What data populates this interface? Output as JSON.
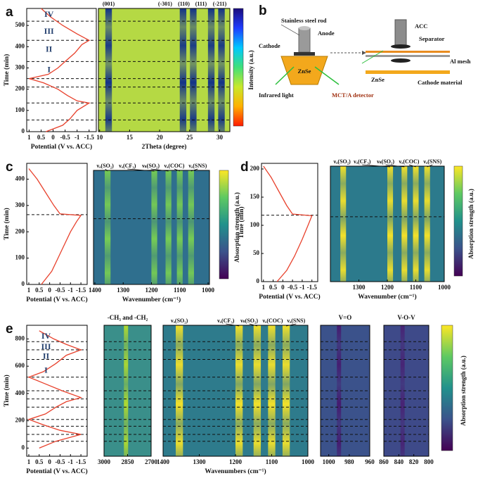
{
  "chart_data": [
    {
      "type": "line",
      "label": "a",
      "ylabel": "Time (min)",
      "xlabel": "Potential (V vs. ACC)",
      "color": "#e8412c",
      "x": [
        0.3,
        -0.4,
        -0.7,
        -1.0,
        -1.5,
        -1.0,
        -0.6,
        -0.2,
        0.4,
        1.0,
        0.2,
        -0.2,
        -0.5,
        -0.9,
        -1.2,
        -1.5,
        -1.0,
        -0.4,
        0.1,
        0.5
      ],
      "values": [
        0,
        30,
        60,
        100,
        135,
        145,
        170,
        200,
        230,
        250,
        270,
        300,
        330,
        370,
        410,
        430,
        460,
        500,
        540,
        580
      ],
      "xlim": [
        1.1,
        -1.8
      ],
      "xticks": [
        1,
        0.5,
        0,
        -0.5,
        -1,
        -1.5
      ],
      "ylim": [
        0,
        580
      ],
      "yticks": [
        0,
        100,
        200,
        300,
        400,
        500
      ],
      "hlines": [
        55,
        135,
        210,
        250,
        330,
        430,
        520
      ],
      "annotations": [
        {
          "text": "IV",
          "y": 550
        },
        {
          "text": "III",
          "y": 470
        },
        {
          "text": "II",
          "y": 385
        },
        {
          "text": "I",
          "y": 290
        }
      ]
    },
    {
      "type": "heatmap",
      "xlabel": "2Theta (degree)",
      "xlim": [
        9.8,
        31.7
      ],
      "xticks": [
        10,
        15,
        20,
        25,
        30
      ],
      "ylim": [
        0,
        580
      ],
      "hlines": [
        55,
        135,
        210,
        250,
        330,
        430,
        520
      ],
      "colorbar_label": "Intensity (a.u.)",
      "colormap": [
        "#1a0b7a",
        "#1e3cff",
        "#00c8ff",
        "#3fe07a",
        "#c8e82a",
        "#ffb000",
        "#ff1a00"
      ],
      "background": "#b5d944",
      "peak_color": "#0b2a8c",
      "peaks": [
        {
          "label": "(001)",
          "x": 11.5
        },
        {
          "label": "(-301)",
          "x": 23.9
        },
        {
          "label": "(110)",
          "x": 25.6
        },
        {
          "label": "(111)",
          "x": 28.6
        },
        {
          "label": "(-211)",
          "x": 30.3
        }
      ]
    },
    {
      "type": "line",
      "label": "c",
      "ylabel": "Time (min)",
      "xlabel": "Potential (V vs. ACC)",
      "color": "#e8412c",
      "x": [
        0.4,
        -0.1,
        -0.4,
        -0.7,
        -1.0,
        -1.3,
        -1.5,
        -0.5,
        -0.2,
        0.2,
        0.6,
        1.0
      ],
      "values": [
        0,
        50,
        100,
        150,
        200,
        240,
        262,
        268,
        300,
        350,
        400,
        440
      ],
      "xlim": [
        1.1,
        -1.8
      ],
      "xticks": [
        1,
        0.5,
        0,
        -0.5,
        -1,
        -1.5
      ],
      "ylim": [
        0,
        460
      ],
      "yticks": [
        0,
        100,
        200,
        300,
        400
      ],
      "hlines": [
        265
      ]
    },
    {
      "type": "heatmap",
      "xlabel": "Wavenumber (cm⁻¹)",
      "xlim": [
        1405,
        995
      ],
      "xticks": [
        1400,
        1300,
        1200,
        1100,
        1000
      ],
      "ylim": [
        0,
        460
      ],
      "hlines": [
        265
      ],
      "colorbar_label": "Absorption strength (a.u.)",
      "colormap": [
        "#fde725",
        "#5ec962",
        "#21918c",
        "#3b528b",
        "#440154"
      ],
      "background": "#2f6f8e",
      "peak_color": "#7ad151",
      "peak_arrows": true,
      "peaks": [
        {
          "label": "νₐ(SO₂)",
          "x": 1355
        },
        {
          "label": "νₐ(CF₃)",
          "x": 1190
        },
        {
          "label": "νₛ(SO₂)",
          "x": 1140
        },
        {
          "label": "νₐ(COC)",
          "x": 1100
        },
        {
          "label": "νₐ(SNS)",
          "x": 1060
        }
      ]
    },
    {
      "type": "line",
      "label": "d",
      "ylabel": "Time (min)",
      "xlabel": "Potential (V vs. ACC)",
      "color": "#e8412c",
      "x": [
        0.3,
        -0.2,
        -0.6,
        -1.0,
        -1.3,
        -1.5,
        -0.5,
        -0.2,
        0.2,
        0.6,
        1.0
      ],
      "values": [
        0,
        20,
        45,
        75,
        100,
        117,
        120,
        135,
        160,
        185,
        205
      ],
      "xlim": [
        1.1,
        -1.8
      ],
      "xticks": [
        1,
        0.5,
        0,
        -0.5,
        -1,
        -1.5
      ],
      "ylim": [
        0,
        210
      ],
      "yticks": [
        0,
        50,
        100,
        150,
        200
      ],
      "hlines": [
        118
      ]
    },
    {
      "type": "heatmap",
      "xlabel": "Wavenumber (cm⁻¹)",
      "xlim": [
        1400,
        1000
      ],
      "xticks": [
        1300,
        1200,
        1100,
        1000
      ],
      "ylim": [
        0,
        210
      ],
      "hlines": [
        118
      ],
      "colorbar_label": "Absorption strength (a.u.)",
      "colormap": [
        "#fde725",
        "#5ec962",
        "#21918c",
        "#3b528b",
        "#440154"
      ],
      "background": "#2c7a8c",
      "peak_color": "#fde725",
      "peak_arrows": true,
      "peaks": [
        {
          "label": "νₐ(SO₂)",
          "x": 1355
        },
        {
          "label": "νₐ(CF₃)",
          "x": 1190
        },
        {
          "label": "νₛ(SO₂)",
          "x": 1140
        },
        {
          "label": "νₐ(COC)",
          "x": 1100
        },
        {
          "label": "νₐ(SNS)",
          "x": 1060
        }
      ]
    },
    {
      "type": "line",
      "label": "e",
      "ylabel": "Time (min)",
      "xlabel": "Potential (V vs. ACC)",
      "color": "#e8412c",
      "x": [
        0.5,
        -0.3,
        -1.5,
        -0.5,
        0.3,
        1.0,
        0.2,
        -0.3,
        -0.8,
        -1.5,
        -0.6,
        0.2,
        1.0,
        0.3,
        -0.3,
        -0.8,
        -1.5,
        -0.8,
        -0.2,
        0.5
      ],
      "values": [
        0,
        50,
        100,
        130,
        170,
        210,
        250,
        300,
        340,
        370,
        420,
        470,
        520,
        560,
        620,
        680,
        720,
        760,
        800,
        860
      ],
      "xlim": [
        1.1,
        -1.8
      ],
      "xticks": [
        1,
        0.5,
        0,
        -0.5,
        -1,
        -1.5
      ],
      "ylim": [
        -60,
        900
      ],
      "yticks": [
        0,
        200,
        400,
        600,
        800
      ],
      "hlines": [
        50,
        100,
        160,
        210,
        300,
        360,
        420,
        520,
        650,
        720,
        780
      ],
      "annotations": [
        {
          "text": "IV",
          "y": 815
        },
        {
          "text": "III",
          "y": 740
        },
        {
          "text": "II",
          "y": 670
        },
        {
          "text": "I",
          "y": 565
        }
      ]
    },
    {
      "type": "heatmap",
      "title": "-CH₃  and  -CH₂",
      "xlim": [
        3000,
        2700
      ],
      "xticks": [
        3000,
        2850,
        2700
      ],
      "ylim": [
        -60,
        900
      ],
      "hlines": [
        50,
        100,
        160,
        210,
        300,
        360,
        420,
        520,
        650,
        720,
        780
      ],
      "background": "#3a8f8a",
      "peak_color": "#b5de2b",
      "peaks": [
        {
          "x": 2860
        }
      ]
    },
    {
      "type": "heatmap",
      "xlabel": "Wavenumbers (cm⁻¹)",
      "xlim": [
        1400,
        1000
      ],
      "xticks": [
        1400,
        1300,
        1200,
        1100,
        1000
      ],
      "ylim": [
        -60,
        900
      ],
      "hlines": [
        50,
        100,
        160,
        210,
        300,
        360,
        420,
        520,
        650,
        720,
        780
      ],
      "background": "#2e7b8c",
      "peak_color": "#fde725",
      "peak_arrows": true,
      "peaks": [
        {
          "label": "νₐ(SO₂)",
          "x": 1355
        },
        {
          "label": "νₐ(CF₃)",
          "x": 1190
        },
        {
          "label": "νₛ(SO₂)",
          "x": 1140
        },
        {
          "label": "νₐ(COC)",
          "x": 1100
        },
        {
          "label": "νₐ(SNS)",
          "x": 1060
        }
      ]
    },
    {
      "type": "heatmap",
      "title": "V=O",
      "xlim": [
        1008,
        960
      ],
      "xticks": [
        1000,
        980,
        960
      ],
      "ylim": [
        -60,
        900
      ],
      "hlines": [
        50,
        100,
        160,
        210,
        300,
        360,
        420,
        520,
        650,
        720,
        780
      ],
      "background": "#3b528b",
      "peak_color": "#46186e",
      "peaks": [
        {
          "x": 990
        }
      ]
    },
    {
      "type": "heatmap",
      "title": "V-O-V",
      "xlim": [
        860,
        800
      ],
      "xticks": [
        860,
        840,
        820,
        800
      ],
      "ylim": [
        -60,
        900
      ],
      "hlines": [
        50,
        100,
        160,
        210,
        300,
        360,
        420,
        520,
        650,
        720,
        780
      ],
      "colorbar_label": "Absorption strength (a.u.)",
      "colormap": [
        "#fde725",
        "#5ec962",
        "#21918c",
        "#3b528b",
        "#440154"
      ],
      "background": "#3e4a89",
      "peak_color": "#482173",
      "peaks": [
        {
          "x": 835
        }
      ]
    }
  ],
  "diagram": {
    "label": "b",
    "rod": "Stainless steel rod",
    "anode": "Anode",
    "cathode": "Cathode",
    "crystal": "ZnSe",
    "light": "Infrared light",
    "detector": "MCT/A detector",
    "acc": "ACC",
    "separator": "Separator",
    "mesh": "Al mesh",
    "crystal2": "ZnSe",
    "cathode_material": "Cathode material"
  }
}
